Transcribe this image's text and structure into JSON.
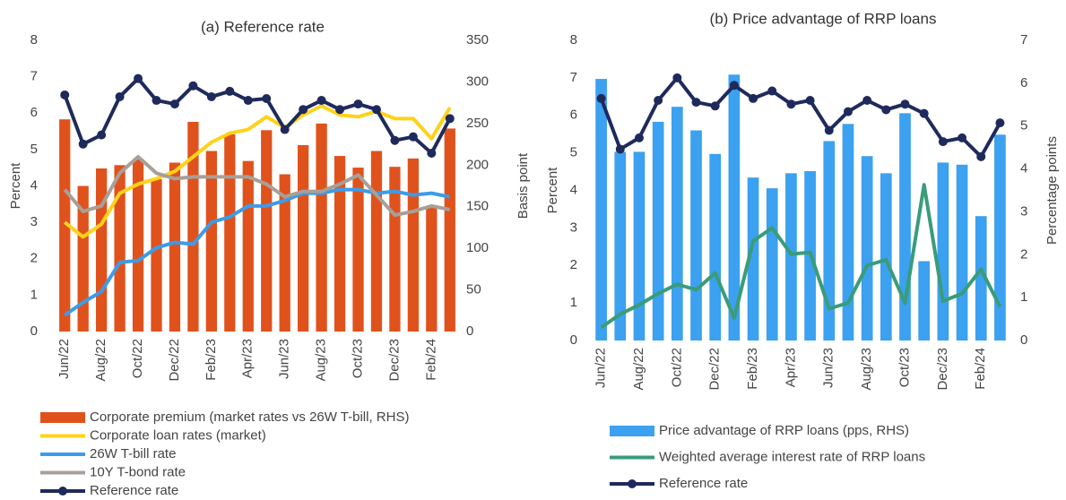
{
  "chart_data": [
    {
      "type": "combo",
      "title": "(a) Reference rate",
      "categories": [
        "Jun/22",
        null,
        "Aug/22",
        null,
        "Oct/22",
        null,
        "Dec/22",
        null,
        "Feb/23",
        null,
        "Apr/23",
        null,
        "Jun/23",
        null,
        "Aug/23",
        null,
        "Oct/23",
        null,
        "Dec/23",
        null,
        "Feb/24",
        null
      ],
      "y_label": "Percent",
      "y2_label": "Basis point",
      "ylim": [
        0,
        8
      ],
      "yticks": [
        0,
        1,
        2,
        3,
        4,
        5,
        6,
        7,
        8
      ],
      "y2lim": [
        0,
        350
      ],
      "y2ticks": [
        0,
        50,
        100,
        150,
        200,
        250,
        300,
        350
      ],
      "series": [
        {
          "name": "Corporate premium (market rates vs 26W T-bill, RHS)",
          "type": "bar",
          "axis": "y2",
          "color": "#e0521c",
          "values": [
            255,
            175,
            196,
            200,
            207,
            183,
            203,
            252,
            217,
            237,
            205,
            242,
            189,
            224,
            250,
            211,
            197,
            217,
            198,
            208,
            150,
            244
          ]
        },
        {
          "name": "Corporate loan rates (market)",
          "type": "line",
          "color": "#ffd21a",
          "values": [
            3.0,
            2.6,
            2.95,
            3.8,
            4.05,
            4.2,
            4.4,
            4.8,
            5.2,
            5.45,
            5.55,
            5.9,
            5.6,
            5.95,
            6.2,
            5.95,
            5.9,
            6.05,
            5.85,
            5.85,
            5.3,
            6.15
          ]
        },
        {
          "name": "26W T-bill rate",
          "type": "line",
          "color": "#3d9be9",
          "values": [
            0.45,
            0.8,
            1.1,
            1.9,
            1.95,
            2.3,
            2.45,
            2.4,
            3.0,
            3.15,
            3.45,
            3.45,
            3.6,
            3.8,
            3.8,
            3.9,
            3.9,
            3.8,
            3.85,
            3.75,
            3.8,
            3.7
          ]
        },
        {
          "name": "10Y T-bond rate",
          "type": "line",
          "color": "#a89f98",
          "values": [
            3.9,
            3.3,
            3.45,
            4.35,
            4.8,
            4.35,
            4.2,
            4.25,
            4.25,
            4.25,
            4.25,
            4.05,
            3.7,
            3.85,
            3.85,
            4.05,
            4.3,
            3.75,
            3.2,
            3.3,
            3.45,
            3.35
          ]
        },
        {
          "name": "Reference rate",
          "type": "line",
          "color": "#1f2a5c",
          "marker": true,
          "values": [
            6.5,
            5.15,
            5.4,
            6.45,
            6.95,
            6.35,
            6.25,
            6.75,
            6.45,
            6.6,
            6.35,
            6.4,
            5.55,
            6.1,
            6.35,
            6.1,
            6.25,
            6.1,
            5.25,
            5.35,
            4.9,
            5.85
          ]
        }
      ]
    },
    {
      "type": "combo",
      "title": "(b) Price advantage of RRP loans",
      "categories": [
        "Jun/22",
        null,
        "Aug/22",
        null,
        "Oct/22",
        null,
        "Dec/22",
        null,
        "Feb/23",
        null,
        "Apr/23",
        null,
        "Jun/23",
        null,
        "Aug/23",
        null,
        "Oct/23",
        null,
        "Dec/23",
        null,
        "Feb/24",
        null
      ],
      "y_label": "Percent",
      "y2_label": "Percentage points",
      "ylim": [
        0,
        8
      ],
      "yticks": [
        0,
        1,
        2,
        3,
        4,
        5,
        6,
        7,
        8
      ],
      "y2lim": [
        0,
        7
      ],
      "y2ticks": [
        0,
        1,
        2,
        3,
        4,
        5,
        6,
        7
      ],
      "series": [
        {
          "name": "Price advantage of RRP loans (pps, RHS)",
          "type": "bar",
          "axis": "y2",
          "color": "#3ba1f0",
          "values": [
            6.1,
            4.4,
            4.4,
            5.1,
            5.45,
            4.9,
            4.35,
            6.2,
            3.8,
            3.55,
            3.9,
            3.95,
            4.65,
            5.05,
            4.3,
            3.9,
            5.3,
            1.85,
            4.15,
            4.1,
            2.9,
            4.8
          ]
        },
        {
          "name": "Weighted average interest rate of RRP loans",
          "type": "line",
          "color": "#3a9c78",
          "values": [
            0.35,
            0.7,
            0.95,
            1.25,
            1.5,
            1.35,
            1.8,
            0.6,
            2.65,
            3.0,
            2.3,
            2.35,
            0.85,
            1.0,
            2.0,
            2.15,
            1.0,
            4.15,
            1.05,
            1.25,
            1.9,
            0.9
          ]
        },
        {
          "name": "Reference rate",
          "type": "line",
          "color": "#1f2a5c",
          "marker": true,
          "values": [
            6.45,
            5.1,
            5.4,
            6.4,
            7.0,
            6.35,
            6.25,
            6.8,
            6.45,
            6.65,
            6.3,
            6.4,
            5.6,
            6.1,
            6.4,
            6.15,
            6.3,
            6.05,
            5.3,
            5.4,
            4.9,
            5.8
          ]
        }
      ]
    }
  ]
}
